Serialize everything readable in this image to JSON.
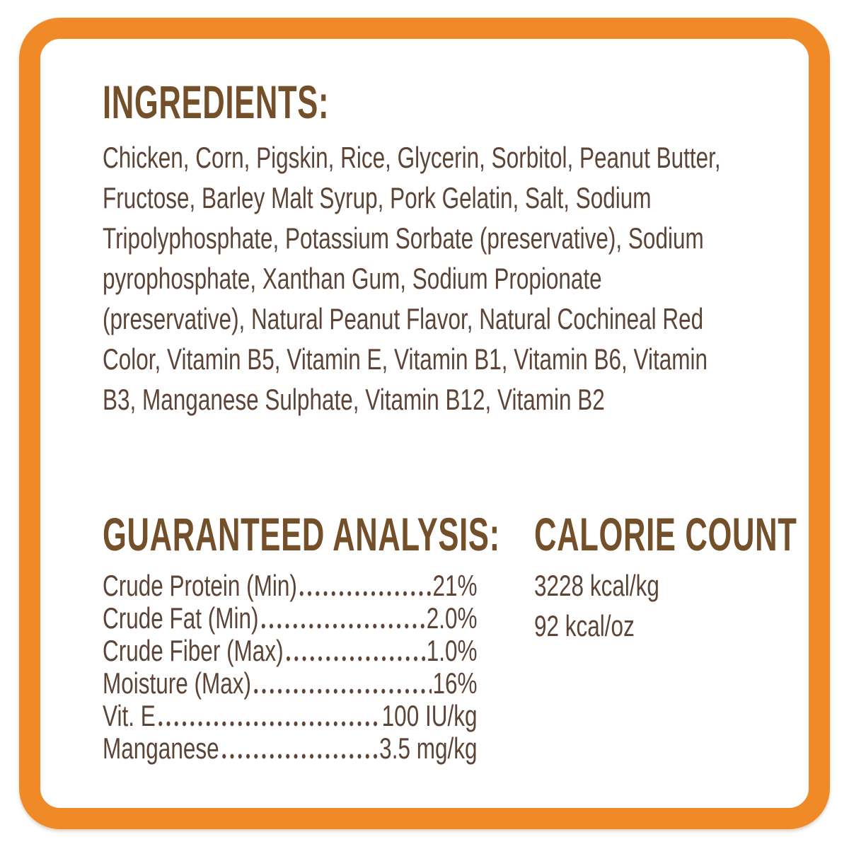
{
  "colors": {
    "border": "#F08A28",
    "heading": "#74502A",
    "text": "#5C4437"
  },
  "ingredients": {
    "heading": "INGREDIENTS:",
    "lines": [
      "Chicken, Corn, Pigskin, Rice, Glycerin, Sorbitol, Peanut Butter,",
      "Fructose, Barley Malt Syrup, Pork Gelatin, Salt, Sodium",
      "Tripolyphosphate, Potassium Sorbate (preservative), Sodium",
      "pyrophosphate, Xanthan Gum, Sodium Propionate",
      "(preservative), Natural Peanut Flavor, Natural Cochineal Red",
      "Color, Vitamin B5, Vitamin E, Vitamin B1, Vitamin B6, Vitamin",
      "B3, Manganese Sulphate, Vitamin B12, Vitamin B2"
    ]
  },
  "guaranteed_analysis": {
    "heading": "GUARANTEED ANALYSIS:",
    "rows": [
      {
        "label": "Crude Protein (Min)",
        "value": "21%"
      },
      {
        "label": "Crude Fat (Min)",
        "value": "2.0%"
      },
      {
        "label": "Crude Fiber (Max)",
        "value": "1.0%"
      },
      {
        "label": "Moisture (Max)",
        "value": "16%"
      },
      {
        "label": "Vit. E",
        "value": "100 IU/kg"
      },
      {
        "label": "Manganese",
        "value": "3.5 mg/kg"
      }
    ]
  },
  "calorie_count": {
    "heading": "CALORIE COUNT",
    "lines": [
      "3228 kcal/kg",
      "92 kcal/oz"
    ]
  }
}
